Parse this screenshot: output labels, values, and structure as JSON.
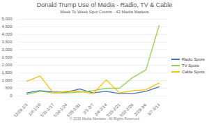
{
  "chart_data": {
    "type": "line",
    "title": "Donald Trump Use of Media - Radio, TV & Cable",
    "subtitle": "Week To Week Spot Counts - 43 Media Markets",
    "caption": "© 2016 Media Monitors - All Rights Reserved",
    "categories": [
      "12/28-1/3",
      "1/4-1/10",
      "1/11-1/17",
      "1/18-1/24",
      "1/25-1/31",
      "2/1-2/7",
      "2/8-2/14",
      "2/15-2/21",
      "2/22-2/28",
      "2/29-3/6",
      "3/7-3/13"
    ],
    "series": [
      {
        "name": "Radio Spots",
        "color": "#4472c4",
        "values": [
          200,
          350,
          250,
          250,
          450,
          200,
          300,
          150,
          150,
          300,
          600
        ]
      },
      {
        "name": "TV Spots",
        "color": "#92d050",
        "values": [
          100,
          300,
          200,
          200,
          250,
          350,
          500,
          500,
          1200,
          1700,
          4600
        ]
      },
      {
        "name": "Cable Spots",
        "color": "#ffc000",
        "values": [
          950,
          1300,
          200,
          300,
          300,
          150,
          1050,
          200,
          350,
          400,
          850
        ]
      }
    ],
    "ylim": [
      0,
      5000
    ],
    "yticks": [
      0,
      500,
      {
        "value": 1000,
        "label": "1,000"
      },
      {
        "value": 1500,
        "label": "1,500"
      },
      {
        "value": 2000,
        "label": "2,000"
      },
      {
        "value": 2500,
        "label": "2,500"
      },
      {
        "value": 3000,
        "label": "3,000"
      },
      {
        "value": 3500,
        "label": "3,500"
      },
      {
        "value": 4000,
        "label": "4,000"
      },
      {
        "value": 4500,
        "label": "4,500"
      },
      {
        "value": 5000,
        "label": "5,000"
      }
    ],
    "grid": true,
    "legend": "right"
  }
}
